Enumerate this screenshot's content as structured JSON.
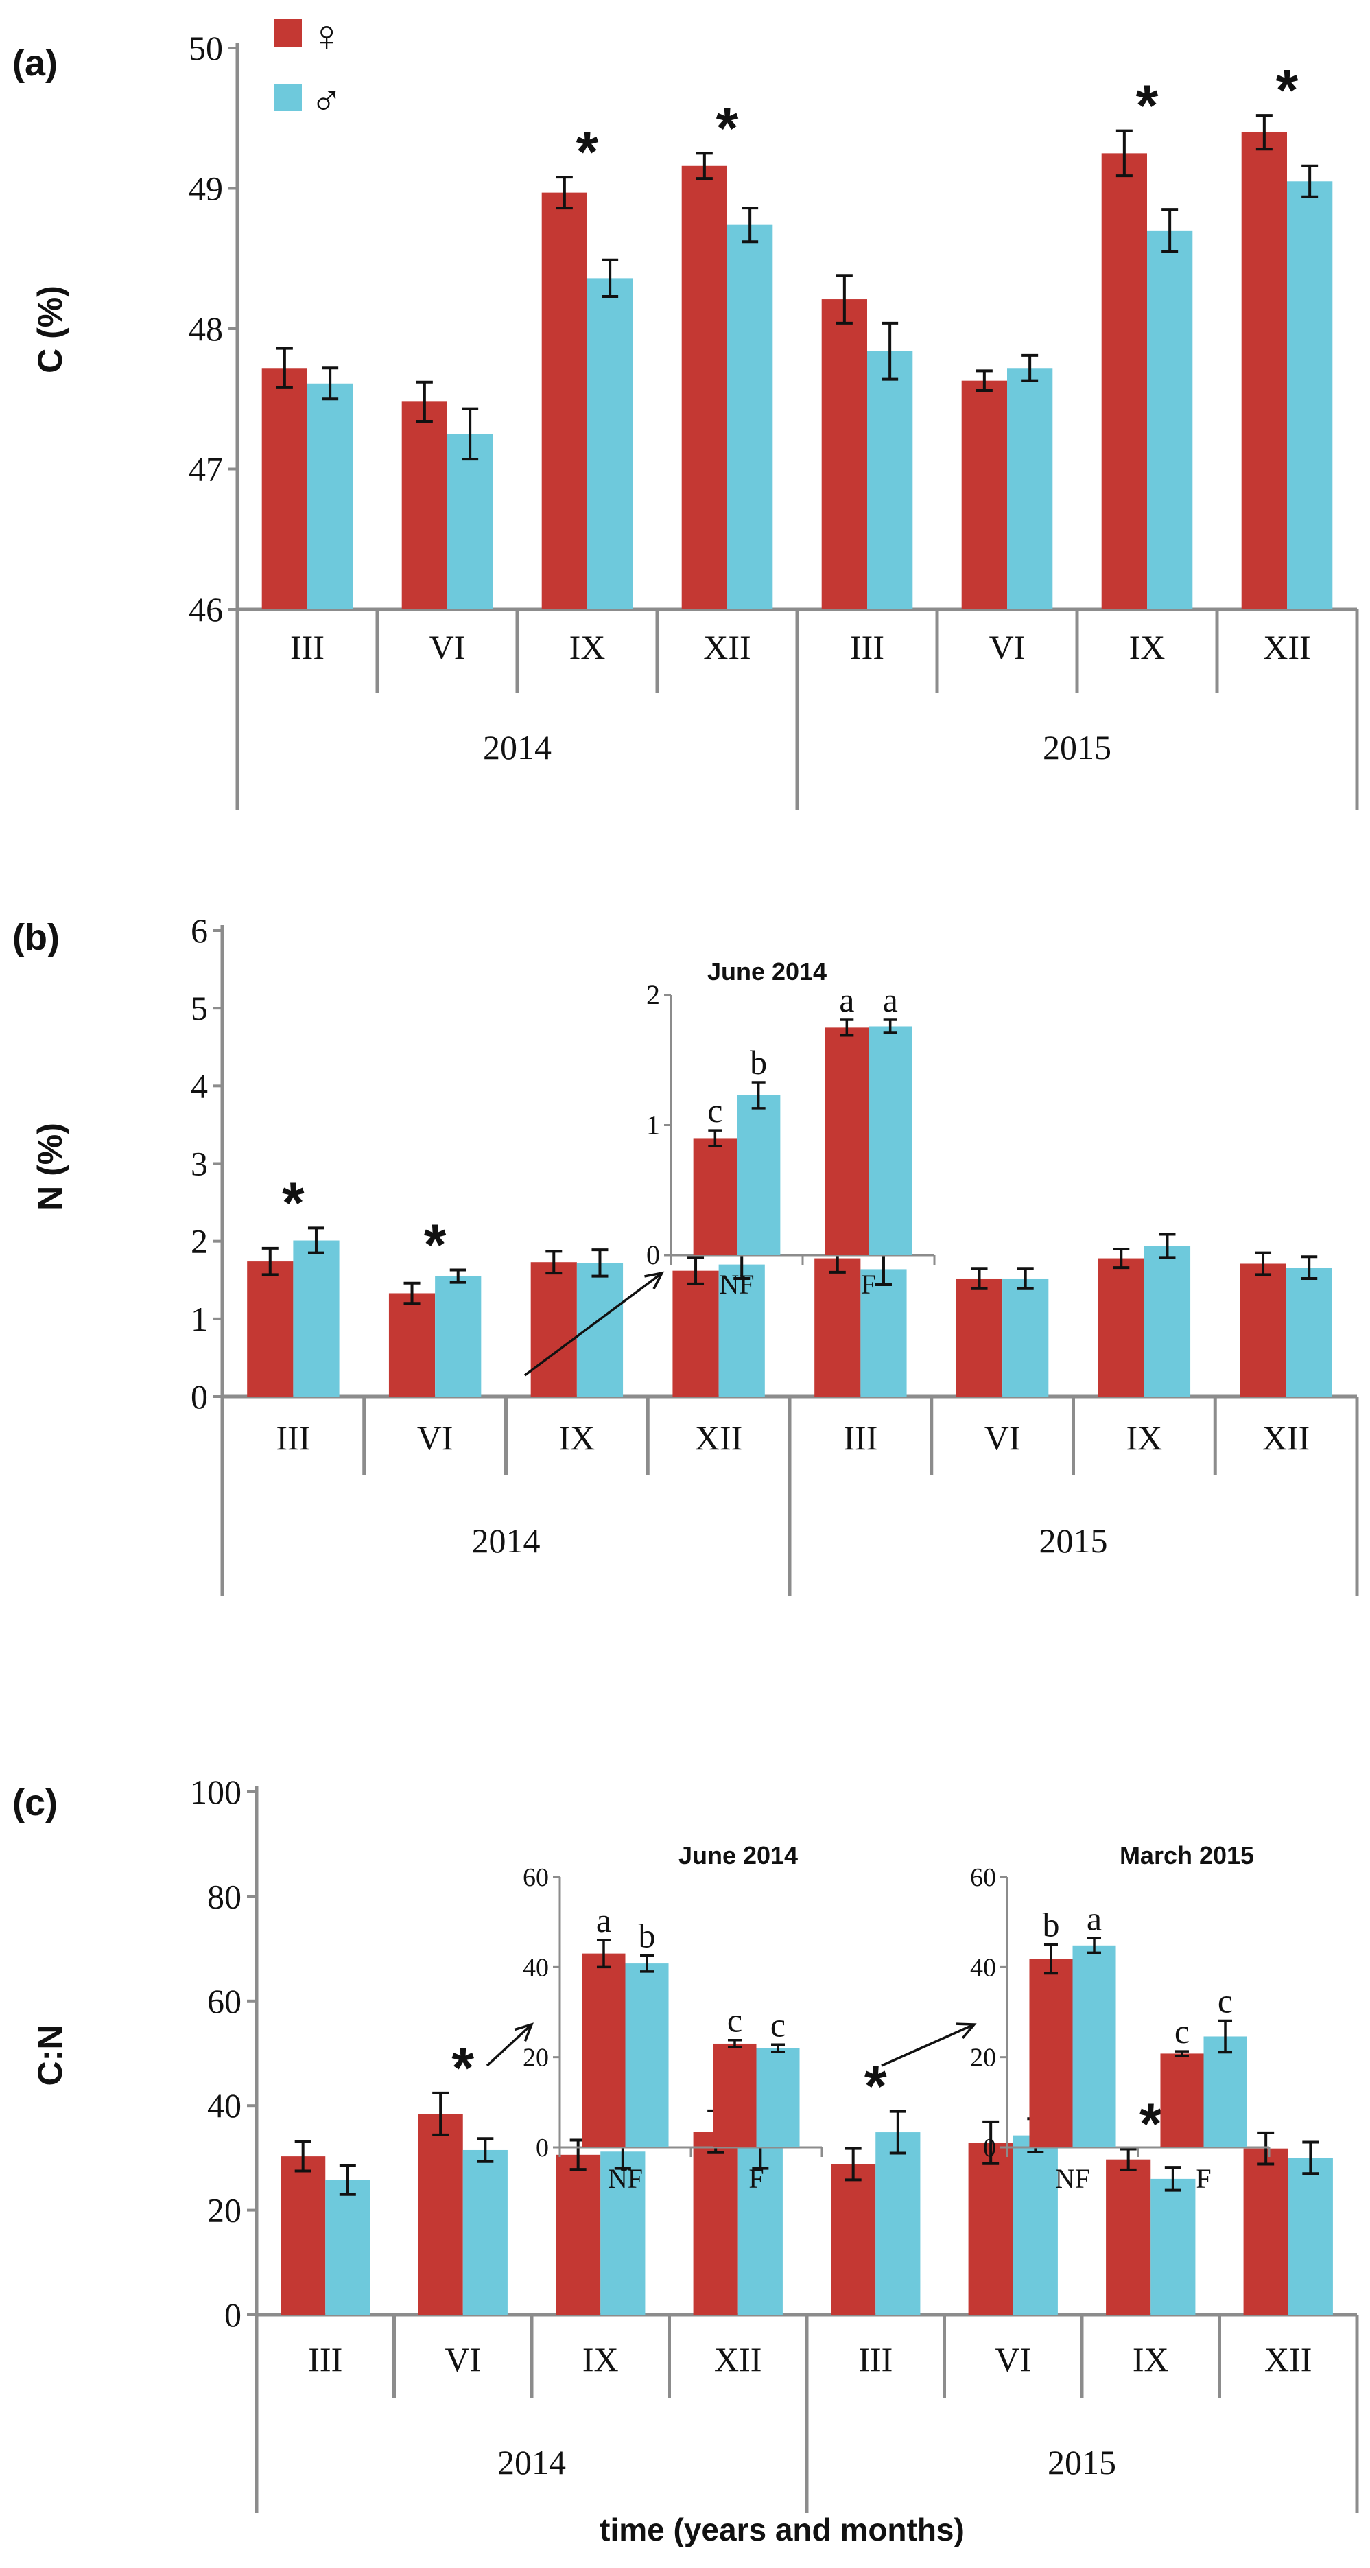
{
  "colors": {
    "female": "#c43833",
    "male": "#6ec9dc",
    "axis": "#8c8c8c",
    "ink": "#111111"
  },
  "legend": {
    "female": "♀",
    "male": "♂"
  },
  "x_axis_title": "time (years and months)",
  "chart_data": [
    {
      "panel": "(a)",
      "type": "bar",
      "ylabel": "C (%)",
      "ylim": [
        46,
        50
      ],
      "yticks": [
        46,
        47,
        48,
        49,
        50
      ],
      "categories": [
        "III",
        "VI",
        "IX",
        "XII",
        "III",
        "VI",
        "IX",
        "XII"
      ],
      "years": [
        "2014",
        "2015"
      ],
      "series": [
        {
          "name": "♀",
          "values": [
            47.72,
            47.48,
            48.97,
            49.16,
            48.21,
            47.63,
            49.25,
            49.4
          ],
          "errors": [
            0.14,
            0.14,
            0.11,
            0.09,
            0.17,
            0.07,
            0.16,
            0.12
          ]
        },
        {
          "name": "♂",
          "values": [
            47.61,
            47.25,
            48.36,
            48.74,
            47.84,
            47.72,
            48.7,
            49.05
          ],
          "errors": [
            0.11,
            0.18,
            0.13,
            0.12,
            0.2,
            0.09,
            0.15,
            0.11
          ]
        }
      ],
      "significance": [
        "",
        "",
        "*",
        "*",
        "",
        "",
        "*",
        "*"
      ]
    },
    {
      "panel": "(b)",
      "type": "bar",
      "ylabel": "N (%)",
      "ylim": [
        0,
        6
      ],
      "yticks": [
        0,
        1,
        2,
        3,
        4,
        5,
        6
      ],
      "categories": [
        "III",
        "VI",
        "IX",
        "XII",
        "III",
        "VI",
        "IX",
        "XII"
      ],
      "years": [
        "2014",
        "2015"
      ],
      "series": [
        {
          "name": "♀",
          "values": [
            1.74,
            1.33,
            1.73,
            1.62,
            1.78,
            1.52,
            1.78,
            1.71
          ],
          "errors": [
            0.17,
            0.13,
            0.14,
            0.17,
            0.18,
            0.13,
            0.12,
            0.14
          ]
        },
        {
          "name": "♂",
          "values": [
            2.01,
            1.55,
            1.72,
            1.7,
            1.64,
            1.52,
            1.94,
            1.66
          ],
          "errors": [
            0.16,
            0.08,
            0.17,
            0.18,
            0.2,
            0.13,
            0.15,
            0.14
          ]
        }
      ],
      "significance": [
        "*",
        "*",
        "",
        "",
        "",
        "",
        "",
        ""
      ],
      "insets": [
        {
          "title": "June 2014",
          "ylim": [
            0,
            2
          ],
          "yticks": [
            0,
            1,
            2
          ],
          "categories": [
            "NF",
            "F"
          ],
          "series": [
            {
              "name": "♀",
              "values": [
                0.9,
                1.75
              ],
              "errors": [
                0.06,
                0.06
              ],
              "letters": [
                "c",
                "a"
              ]
            },
            {
              "name": "♂",
              "values": [
                1.23,
                1.76
              ],
              "errors": [
                0.1,
                0.05
              ],
              "letters": [
                "b",
                "a"
              ]
            }
          ]
        }
      ]
    },
    {
      "panel": "(c)",
      "type": "bar",
      "ylabel": "C:N",
      "ylim": [
        0,
        100
      ],
      "yticks": [
        0,
        20,
        40,
        60,
        80,
        100
      ],
      "categories": [
        "III",
        "VI",
        "IX",
        "XII",
        "III",
        "VI",
        "IX",
        "XII"
      ],
      "years": [
        "2014",
        "2015"
      ],
      "series": [
        {
          "name": "♀",
          "values": [
            30.3,
            38.4,
            30.6,
            35.0,
            28.8,
            32.9,
            29.7,
            31.8
          ],
          "errors": [
            2.8,
            4.0,
            2.8,
            4.0,
            3.0,
            4.0,
            2.0,
            3.0
          ]
        },
        {
          "name": "♂",
          "values": [
            25.8,
            31.5,
            31.2,
            32.0,
            34.9,
            34.3,
            26.0,
            30.0
          ],
          "errors": [
            2.8,
            2.2,
            3.2,
            4.0,
            4.0,
            3.2,
            2.2,
            3.0
          ]
        }
      ],
      "significance": [
        "",
        "*",
        "",
        "",
        "*",
        "",
        "*",
        ""
      ],
      "insets": [
        {
          "title": "June 2014",
          "ylim": [
            0,
            60
          ],
          "yticks": [
            0,
            20,
            40,
            60
          ],
          "categories": [
            "NF",
            "F"
          ],
          "series": [
            {
              "name": "♀",
              "values": [
                43.0,
                23.0
              ],
              "errors": [
                3.0,
                0.8
              ],
              "letters": [
                "a",
                "c"
              ]
            },
            {
              "name": "♂",
              "values": [
                40.8,
                22.0
              ],
              "errors": [
                1.8,
                0.8
              ],
              "letters": [
                "b",
                "c"
              ]
            }
          ]
        },
        {
          "title": "March 2015",
          "ylim": [
            0,
            60
          ],
          "yticks": [
            0,
            20,
            40,
            60
          ],
          "categories": [
            "NF",
            "F"
          ],
          "series": [
            {
              "name": "♀",
              "values": [
                41.8,
                20.8
              ],
              "errors": [
                3.2,
                0.5
              ],
              "letters": [
                "b",
                "c"
              ]
            },
            {
              "name": "♂",
              "values": [
                44.8,
                24.6
              ],
              "errors": [
                1.6,
                3.5
              ],
              "letters": [
                "a",
                "c"
              ]
            }
          ]
        }
      ]
    }
  ]
}
